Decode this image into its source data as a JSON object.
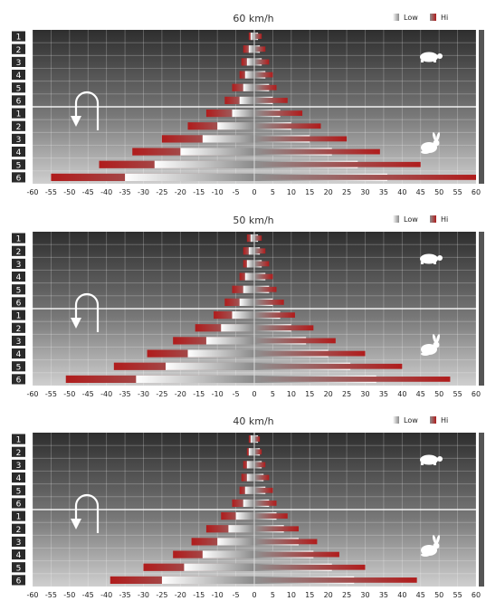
{
  "legend": {
    "low_label": "Low",
    "hi_label": "Hi",
    "low_color": "#d8d8d8",
    "hi_color": "#b01c1c"
  },
  "colors": {
    "panel_dark": "#333333",
    "panel_light": "#cfcfcf",
    "label_box": "#2a2a2a",
    "hi_bar": "#b01c1c"
  },
  "icons": {
    "turn": "u-turn-arrow-icon",
    "slow": "turtle-icon",
    "fast": "rabbit-icon"
  },
  "chart_data": [
    {
      "type": "bar",
      "title": "60 km/h",
      "categories": [
        "1",
        "2",
        "3",
        "4",
        "5",
        "6",
        "1",
        "2",
        "3",
        "4",
        "5",
        "6"
      ],
      "xlim": [
        -60,
        60
      ],
      "xticks": [
        -60,
        -55,
        -50,
        -45,
        -40,
        -35,
        -30,
        -25,
        -20,
        -15,
        -10,
        -5,
        0,
        5,
        10,
        15,
        20,
        25,
        30,
        35,
        40,
        45,
        50,
        55,
        60
      ],
      "series": [
        {
          "name": "Low",
          "left": [
            -1,
            -1.5,
            -2,
            -2.5,
            -3,
            -4,
            -6,
            -10,
            -14,
            -20,
            -27,
            -35
          ],
          "right": [
            1,
            1.5,
            2,
            3,
            4,
            5,
            7,
            10,
            15,
            21,
            28,
            36
          ]
        },
        {
          "name": "Hi",
          "left": [
            -1.5,
            -3,
            -3.5,
            -4,
            -6,
            -8,
            -13,
            -18,
            -25,
            -33,
            -42,
            -55
          ],
          "right": [
            2,
            3,
            4,
            5,
            6,
            9,
            13,
            18,
            25,
            34,
            45,
            60
          ]
        }
      ],
      "grid": true
    },
    {
      "type": "bar",
      "title": "50 km/h",
      "categories": [
        "1",
        "2",
        "3",
        "4",
        "5",
        "6",
        "1",
        "2",
        "3",
        "4",
        "5",
        "6"
      ],
      "xlim": [
        -60,
        60
      ],
      "xticks": [
        -60,
        -55,
        -50,
        -45,
        -40,
        -35,
        -30,
        -25,
        -20,
        -15,
        -10,
        -5,
        0,
        5,
        10,
        15,
        20,
        25,
        30,
        35,
        40,
        45,
        50,
        55,
        60
      ],
      "series": [
        {
          "name": "Low",
          "left": [
            -1,
            -1.5,
            -2,
            -2.5,
            -3,
            -4,
            -6,
            -9,
            -13,
            -18,
            -24,
            -32
          ],
          "right": [
            1,
            1.5,
            2,
            3,
            4,
            5,
            7,
            10,
            14,
            20,
            26,
            33
          ]
        },
        {
          "name": "Hi",
          "left": [
            -2,
            -3,
            -3,
            -4,
            -6,
            -8,
            -11,
            -16,
            -22,
            -29,
            -38,
            -51
          ],
          "right": [
            2,
            3,
            4,
            5,
            6,
            8,
            11,
            16,
            22,
            30,
            40,
            53
          ]
        }
      ],
      "grid": true
    },
    {
      "type": "bar",
      "title": "40 km/h",
      "categories": [
        "1",
        "2",
        "3",
        "4",
        "5",
        "6",
        "1",
        "2",
        "3",
        "4",
        "5",
        "6"
      ],
      "xlim": [
        -60,
        60
      ],
      "xticks": [
        -60,
        -55,
        -50,
        -45,
        -40,
        -35,
        -30,
        -25,
        -20,
        -15,
        -10,
        -5,
        0,
        5,
        10,
        15,
        20,
        25,
        30,
        35,
        40,
        45,
        50,
        55,
        60
      ],
      "series": [
        {
          "name": "Low",
          "left": [
            -1,
            -1.5,
            -2,
            -2,
            -2.5,
            -3,
            -5,
            -7,
            -10,
            -14,
            -19,
            -25
          ],
          "right": [
            1,
            1.5,
            2,
            2.5,
            3,
            4,
            6,
            8,
            12,
            16,
            21,
            27
          ]
        },
        {
          "name": "Hi",
          "left": [
            -1.5,
            -2,
            -3,
            -3.5,
            -4,
            -6,
            -9,
            -13,
            -17,
            -22,
            -30,
            -39
          ],
          "right": [
            1.5,
            2,
            3,
            4,
            5,
            6,
            9,
            12,
            17,
            23,
            30,
            44
          ]
        }
      ],
      "grid": true
    }
  ]
}
